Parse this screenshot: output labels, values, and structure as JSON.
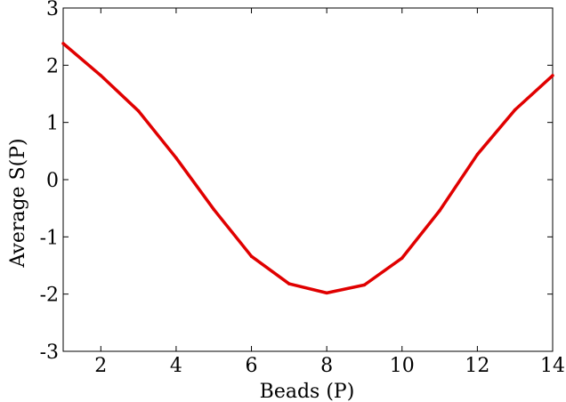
{
  "chart_data": {
    "type": "line",
    "title": "",
    "xlabel": "Beads (P)",
    "ylabel": "Average S(P)",
    "xlim": [
      1,
      14
    ],
    "ylim": [
      -3,
      3
    ],
    "xticks": [
      2,
      4,
      6,
      8,
      10,
      12,
      14
    ],
    "xtick_labels": [
      "2",
      "4",
      "6",
      "8",
      "10",
      "12",
      "14"
    ],
    "yticks": [
      -3,
      -2,
      -1,
      0,
      1,
      2,
      3
    ],
    "ytick_labels": [
      "-3",
      "-2",
      "-1",
      "0",
      "1",
      "2",
      "3"
    ],
    "grid": false,
    "legend": "none",
    "series": [
      {
        "color": "#e00000",
        "x": [
          1,
          2,
          3,
          4,
          5,
          6,
          7,
          8,
          9,
          10,
          11,
          12,
          13,
          14
        ],
        "y": [
          2.38,
          1.82,
          1.2,
          0.38,
          -0.52,
          -1.34,
          -1.82,
          -1.98,
          -1.84,
          -1.37,
          -0.54,
          0.44,
          1.22,
          1.82
        ]
      }
    ]
  }
}
